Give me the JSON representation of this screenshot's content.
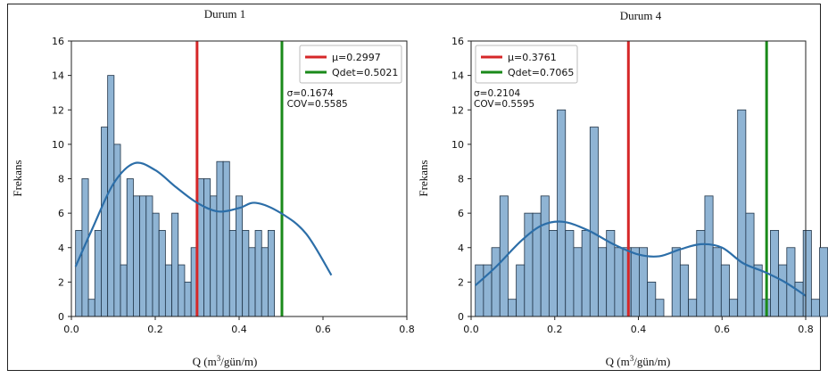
{
  "chart_data": [
    {
      "type": "bar",
      "title": "Durum 1",
      "xlabel": "Q (m³/gün/m)",
      "ylabel": "Frekans",
      "xlim": [
        0.0,
        0.8
      ],
      "ylim": [
        0,
        16
      ],
      "xticks": [
        "0.0",
        "0.2",
        "0.4",
        "0.6",
        "0.8"
      ],
      "yticks": [
        "0",
        "2",
        "4",
        "6",
        "8",
        "10",
        "12",
        "14",
        "16"
      ],
      "bin_start": 0.01,
      "bin_width": 0.0153,
      "values": [
        5,
        8,
        1,
        5,
        11,
        14,
        10,
        3,
        8,
        7,
        7,
        7,
        6,
        5,
        3,
        6,
        3,
        2,
        4,
        8,
        8,
        7,
        9,
        9,
        5,
        7,
        5,
        4,
        5,
        4,
        5
      ],
      "kde": [
        [
          0.01,
          2.9
        ],
        [
          0.05,
          5.1
        ],
        [
          0.1,
          7.7
        ],
        [
          0.15,
          8.9
        ],
        [
          0.2,
          8.5
        ],
        [
          0.25,
          7.5
        ],
        [
          0.3,
          6.6
        ],
        [
          0.35,
          6.1
        ],
        [
          0.4,
          6.3
        ],
        [
          0.44,
          6.6
        ],
        [
          0.5,
          6.0
        ],
        [
          0.56,
          4.8
        ],
        [
          0.62,
          2.4
        ]
      ],
      "vlines": [
        {
          "label": "μ=0.2997",
          "x": 0.2997,
          "color": "#d62728"
        },
        {
          "label": "Qdet=0.5021",
          "x": 0.5021,
          "color": "#1a8a1a"
        }
      ],
      "annotations": [
        "σ=0.1674",
        "COV=0.5585"
      ],
      "legend_position": "top-right",
      "bar_color": "#8fb4d4",
      "kde_color": "#2c6ea8"
    },
    {
      "type": "bar",
      "title": "Durum 4",
      "xlabel": "Q (m³/gün/m)",
      "ylabel": "Frekans",
      "xlim": [
        0.0,
        0.8
      ],
      "ylim": [
        0,
        16
      ],
      "xticks": [
        "0.0",
        "0.2",
        "0.4",
        "0.6",
        "0.8"
      ],
      "yticks": [
        "0",
        "2",
        "4",
        "6",
        "8",
        "10",
        "12",
        "14",
        "16"
      ],
      "bin_start": 0.01,
      "bin_width": 0.0196,
      "values": [
        3,
        3,
        4,
        7,
        1,
        3,
        6,
        6,
        7,
        5,
        12,
        5,
        4,
        5,
        11,
        4,
        5,
        4,
        4,
        4,
        4,
        2,
        1,
        0,
        4,
        3,
        1,
        5,
        7,
        4,
        3,
        1,
        12,
        6,
        3,
        1,
        5,
        3,
        4,
        2,
        5,
        1,
        4
      ],
      "kde": [
        [
          0.01,
          1.8
        ],
        [
          0.06,
          2.9
        ],
        [
          0.12,
          4.4
        ],
        [
          0.17,
          5.3
        ],
        [
          0.22,
          5.5
        ],
        [
          0.28,
          5.0
        ],
        [
          0.34,
          4.2
        ],
        [
          0.4,
          3.6
        ],
        [
          0.45,
          3.5
        ],
        [
          0.5,
          3.9
        ],
        [
          0.55,
          4.2
        ],
        [
          0.6,
          4.0
        ],
        [
          0.65,
          3.1
        ],
        [
          0.7,
          2.6
        ],
        [
          0.75,
          2.0
        ],
        [
          0.8,
          1.2
        ]
      ],
      "vlines": [
        {
          "label": "μ=0.3761",
          "x": 0.3761,
          "color": "#d62728"
        },
        {
          "label": "Qdet=0.7065",
          "x": 0.7065,
          "color": "#1a8a1a"
        }
      ],
      "annotations": [
        "σ=0.2104",
        "COV=0.5595"
      ],
      "legend_position": "top-left",
      "bar_color": "#8fb4d4",
      "kde_color": "#2c6ea8"
    }
  ]
}
